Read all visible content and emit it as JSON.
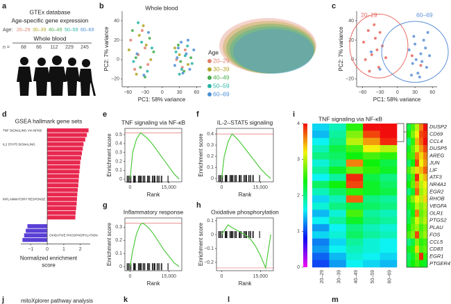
{
  "panel_labels": [
    "a",
    "b",
    "c",
    "d",
    "e",
    "f",
    "g",
    "h",
    "i",
    "j",
    "k",
    "l",
    "m"
  ],
  "a": {
    "source": "GTEx database",
    "subtitle": "Age-specific gene expression",
    "age_label": "Age:",
    "age_groups": [
      "20–29",
      "30–39",
      "40–49",
      "50–59",
      "60–69"
    ],
    "tissue": "Whole blood",
    "n_label": "n =",
    "n": [
      68,
      66,
      112,
      229,
      245
    ]
  },
  "b": {
    "type": "scatter",
    "title": "Whole blood",
    "xlabel": "PC1: 58% variance",
    "ylabel": "PC2: 7% variance",
    "legend_title": "Age",
    "xlim": [
      -70,
      68
    ],
    "ylim": [
      -28,
      50
    ],
    "xticks": [
      {
        "value": -60,
        "label": "−60"
      },
      {
        "value": -30,
        "label": "−30"
      },
      0,
      30,
      60
    ],
    "yticks": [
      {
        "value": -20,
        "label": "−20"
      },
      0,
      20,
      40
    ],
    "series": [
      {
        "name": "20–29",
        "color": "#e0806d",
        "x": [
          -55,
          -42,
          -35,
          -25,
          -48,
          -30,
          25,
          40,
          35
        ],
        "y": [
          20,
          5,
          30,
          -5,
          -10,
          12,
          0,
          10,
          -8
        ]
      },
      {
        "name": "30–39",
        "color": "#b3a425",
        "x": [
          -58,
          -40,
          -28,
          -20,
          -45,
          -33,
          30,
          45,
          22
        ],
        "y": [
          10,
          25,
          15,
          0,
          -15,
          35,
          5,
          -5,
          12
        ]
      },
      {
        "name": "40–49",
        "color": "#46ad4c",
        "x": [
          -52,
          -38,
          -22,
          -46,
          -30,
          -15,
          28,
          38,
          50,
          32
        ],
        "y": [
          30,
          -8,
          22,
          2,
          -18,
          8,
          15,
          -12,
          2,
          -2
        ]
      },
      {
        "name": "50–59",
        "color": "#27b3a6",
        "x": [
          -50,
          -36,
          -26,
          -42,
          -18,
          24,
          34,
          44,
          52,
          30,
          40
        ],
        "y": [
          -2,
          18,
          -12,
          38,
          12,
          8,
          -10,
          14,
          -4,
          -15,
          4
        ]
      },
      {
        "name": "60–69",
        "color": "#4a8fd6",
        "x": [
          -44,
          -32,
          -24,
          22,
          28,
          36,
          42,
          48,
          55,
          33,
          26,
          45
        ],
        "y": [
          6,
          -16,
          28,
          -6,
          12,
          -14,
          6,
          -10,
          10,
          18,
          2,
          20
        ]
      }
    ]
  },
  "c": {
    "type": "scatter",
    "xlabel": "PC1: 58% variance",
    "ylabel": "PC2: 7% variance",
    "xlim": [
      -70,
      68
    ],
    "ylim": [
      -28,
      50
    ],
    "xticks": [
      {
        "value": -60,
        "label": "−60"
      },
      {
        "value": -30,
        "label": "−30"
      },
      0,
      30,
      60
    ],
    "yticks": [
      {
        "value": -20,
        "label": "−20"
      },
      0,
      20,
      40
    ],
    "series": [
      {
        "name": "20–29",
        "color": "#e8685f",
        "x": [
          -58,
          -50,
          -44,
          -38,
          -32,
          -26,
          -20,
          -48,
          -40,
          -30,
          -55,
          -35,
          25,
          40
        ],
        "y": [
          18,
          30,
          5,
          22,
          -8,
          14,
          2,
          -12,
          36,
          28,
          0,
          10,
          4,
          -6
        ]
      },
      {
        "name": "60–69",
        "color": "#5b8fd6",
        "x": [
          -45,
          -30,
          20,
          26,
          30,
          35,
          40,
          45,
          50,
          55,
          28,
          38,
          48,
          32,
          42,
          24,
          52
        ],
        "y": [
          8,
          -10,
          10,
          -4,
          16,
          -14,
          6,
          20,
          -8,
          4,
          24,
          -18,
          12,
          0,
          -2,
          -16,
          28
        ]
      }
    ]
  },
  "d": {
    "type": "bar",
    "title": "GSEA hallmark gene sets",
    "xlabel": [
      "Normalized enrichment",
      "score"
    ],
    "xlim": [
      -1.6,
      2.6
    ],
    "xticks": [
      {
        "value": -1,
        "label": "−1"
      },
      0,
      1,
      2
    ],
    "categories": [
      "TNF SIGNALING VIA NFKB",
      null,
      null,
      "IL2 STAT5 SIGNALING",
      null,
      null,
      null,
      null,
      null,
      null,
      null,
      null,
      null,
      null,
      null,
      "INFLAMMATORY RESPONSE",
      null,
      null,
      null,
      null,
      null,
      null,
      "OXIDATIVE PHOSPHORYLATION",
      null
    ],
    "values": [
      2.5,
      2.4,
      2.3,
      2.2,
      2.15,
      2.1,
      2.05,
      2.0,
      1.98,
      1.95,
      1.92,
      1.9,
      1.88,
      1.85,
      1.82,
      1.8,
      1.78,
      1.75,
      1.72,
      1.7,
      -1.2,
      -1.3,
      -1.4,
      -1.5
    ],
    "colors": {
      "positive": "#e8284f",
      "negative": "#5a3fd6"
    }
  },
  "enrichment": [
    {
      "type": "line",
      "title": "TNF signaling via NF-κB",
      "ylabel": "Enrichment score",
      "xlabel": "Rank",
      "xlim": [
        -2000,
        20000
      ],
      "ylim": [
        -0.03,
        0.57
      ],
      "xticks": [
        0,
        {
          "value": 15000,
          "label": "15,000"
        }
      ],
      "yticks": [
        0,
        0.1,
        0.2,
        0.3,
        0.4,
        0.5
      ],
      "x": [
        0,
        1000,
        2500,
        4000,
        5000,
        7000,
        9000,
        11000,
        13000,
        15000,
        17000,
        19000
      ],
      "values": [
        0,
        0.3,
        0.45,
        0.52,
        0.5,
        0.45,
        0.38,
        0.3,
        0.22,
        0.14,
        0.06,
        0
      ]
    },
    {
      "type": "line",
      "title": "IL-2–STAT5 signaling",
      "ylabel": "Enrichment score",
      "xlabel": "Rank",
      "xlim": [
        -2000,
        20000
      ],
      "ylim": [
        -0.03,
        0.45
      ],
      "xticks": [
        0,
        {
          "value": 15000,
          "label": "15,000"
        }
      ],
      "yticks": [
        0,
        0.1,
        0.2,
        0.3,
        0.4
      ],
      "x": [
        0,
        1000,
        2500,
        4000,
        5000,
        7000,
        9000,
        11000,
        13000,
        15000,
        17000,
        19000
      ],
      "values": [
        0,
        0.2,
        0.33,
        0.4,
        0.38,
        0.33,
        0.27,
        0.21,
        0.15,
        0.09,
        0.04,
        0
      ]
    },
    {
      "type": "line",
      "title": "Inflammatory response",
      "ylabel": "Enrichment score",
      "xlabel": "Rank",
      "xlim": [
        -2000,
        20000
      ],
      "ylim": [
        -0.03,
        0.37
      ],
      "xticks": [
        0,
        {
          "value": 15000,
          "label": "15,000"
        }
      ],
      "yticks": [
        0,
        0.1,
        0.2,
        0.3
      ],
      "x": [
        0,
        1000,
        2500,
        4000,
        5000,
        7000,
        9000,
        11000,
        13000,
        15000,
        17000,
        19000
      ],
      "values": [
        0,
        0.12,
        0.25,
        0.32,
        0.33,
        0.3,
        0.25,
        0.19,
        0.13,
        0.08,
        0.03,
        0
      ]
    },
    {
      "type": "line",
      "title": "Oxidative phosphorylation",
      "ylabel": "Enrichment score",
      "xlabel": "Rank",
      "xlim": [
        -2000,
        20000
      ],
      "ylim": [
        -0.26,
        0.12
      ],
      "xticks": [
        0,
        {
          "value": 15000,
          "label": "15,000"
        }
      ],
      "yticks": [
        0.1,
        0,
        {
          "value": -0.1,
          "label": "−0.1"
        },
        {
          "value": -0.2,
          "label": "−0.2"
        }
      ],
      "x": [
        0,
        1000,
        2500,
        4000,
        5000,
        7000,
        9000,
        11000,
        13000,
        15000,
        17000,
        19000
      ],
      "values": [
        0,
        0.03,
        0.07,
        0.05,
        0.04,
        0.02,
        0,
        -0.03,
        -0.08,
        -0.15,
        -0.24,
        0
      ]
    }
  ],
  "i": {
    "type": "heatmap",
    "title": "TNF signaling via NF-κB",
    "clim": [
      0,
      4
    ],
    "cticks": [
      0,
      1,
      2,
      3,
      4
    ],
    "categories": [
      "20–29",
      "30–39",
      "40–49",
      "50–59",
      "60–69"
    ],
    "values": [
      [
        1.5,
        1.8,
        2.5,
        4,
        4
      ],
      [
        1.4,
        1.9,
        2.8,
        3.8,
        4
      ],
      [
        1.6,
        2.0,
        3.0,
        3.5,
        3.9
      ],
      [
        1.8,
        2.2,
        2.6,
        3.2,
        3.0
      ],
      [
        2.0,
        2.1,
        2.4,
        2.6,
        2.5
      ],
      [
        1.7,
        2.0,
        3.6,
        2.4,
        2.2
      ],
      [
        1.9,
        2.3,
        2.7,
        2.5,
        2.3
      ],
      [
        1.6,
        1.9,
        3.9,
        2.2,
        2.0
      ],
      [
        2.1,
        2.4,
        3.8,
        2.3,
        2.1
      ],
      [
        1.8,
        2.1,
        2.5,
        2.3,
        2.2
      ],
      [
        1.5,
        1.8,
        3.7,
        2.0,
        1.9
      ],
      [
        1.7,
        2.0,
        2.2,
        2.1,
        2.0
      ],
      [
        1.4,
        1.7,
        2.6,
        1.9,
        1.8
      ],
      [
        1.6,
        1.9,
        2.3,
        2.0,
        1.9
      ],
      [
        1.3,
        1.6,
        2.0,
        1.8,
        1.7
      ],
      [
        1.5,
        1.7,
        2.1,
        1.9,
        1.8
      ],
      [
        1.2,
        1.5,
        1.9,
        1.7,
        1.6
      ],
      [
        1.3,
        1.6,
        1.8,
        1.7,
        1.6
      ],
      [
        1.1,
        1.4,
        1.7,
        1.6,
        1.5
      ],
      [
        1.0,
        1.3,
        1.6,
        1.5,
        1.4
      ]
    ],
    "genes": [
      "DUSP2",
      "CD69",
      "CCL4",
      "DUSP5",
      "AREG",
      "JUN",
      "LIF",
      "ATF3",
      "NR4A1",
      "EGR2",
      "RHOB",
      "VEGFA",
      "OLR1",
      "PTGS2",
      "PLAU",
      "FOS",
      "CCL5",
      "CD83",
      "EGR1",
      "PTGER4"
    ],
    "zoom_values": [
      [
        2.2,
        2.6,
        3.0,
        3.6,
        4
      ],
      [
        2.4,
        2.8,
        3.2,
        3.8,
        3.9
      ],
      [
        2.0,
        2.5,
        3.4,
        3.7,
        4
      ],
      [
        2.3,
        2.7,
        3.1,
        3.5,
        3.8
      ],
      [
        2.5,
        2.6,
        3.6,
        3.3,
        3.6
      ],
      [
        2.1,
        2.4,
        3.8,
        3.2,
        3.5
      ],
      [
        2.6,
        2.9,
        3.3,
        3.4,
        3.7
      ],
      [
        2.2,
        2.6,
        3.9,
        3.1,
        3.4
      ],
      [
        2.4,
        2.7,
        3.5,
        3.0,
        3.2
      ],
      [
        2.0,
        2.3,
        3.7,
        2.9,
        3.1
      ],
      [
        2.5,
        2.8,
        3.2,
        3.0,
        3.3
      ],
      [
        2.3,
        2.5,
        3.0,
        2.8,
        3.0
      ],
      [
        2.1,
        2.4,
        3.6,
        2.7,
        2.9
      ],
      [
        2.2,
        2.6,
        3.1,
        2.8,
        3.0
      ],
      [
        2.4,
        2.7,
        2.9,
        2.6,
        2.8
      ],
      [
        2.6,
        2.8,
        3.8,
        2.7,
        2.9
      ],
      [
        2.0,
        2.2,
        2.8,
        2.5,
        2.6
      ],
      [
        2.3,
        2.5,
        3.3,
        2.6,
        2.7
      ],
      [
        2.1,
        2.3,
        2.7,
        3.9,
        2.5
      ],
      [
        2.2,
        2.4,
        2.6,
        2.4,
        2.3
      ]
    ]
  },
  "j": {
    "title": "mitoXplorer pathway analysis"
  }
}
